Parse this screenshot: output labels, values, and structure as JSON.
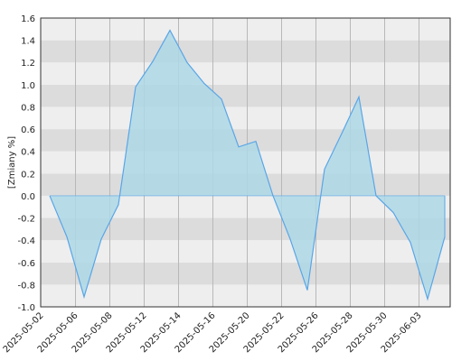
{
  "chart_data": {
    "type": "area",
    "y_label": "[Zmiany %]",
    "categories": [
      "2025-05-02",
      null,
      "2025-05-06",
      null,
      "2025-05-08",
      null,
      "2025-05-12",
      null,
      "2025-05-14",
      null,
      "2025-05-16",
      null,
      "2025-05-20",
      null,
      "2025-05-22",
      null,
      "2025-05-26",
      null,
      "2025-05-28",
      null,
      "2025-05-30",
      null,
      "2025-06-03",
      null
    ],
    "values": [
      0,
      -0.37,
      -0.91,
      -0.39,
      -0.08,
      0.98,
      1.21,
      1.49,
      1.2,
      1.01,
      0.87,
      0.44,
      0.49,
      0,
      -0.39,
      -0.85,
      0.24,
      0.56,
      0.89,
      0,
      -0.15,
      -0.42,
      -0.93,
      -0.37
    ],
    "color": "#5aa5e6",
    "fill": "#add8e6",
    "ylim": [
      -1.0,
      1.6
    ],
    "yticks": [
      {
        "value": -1.0,
        "label": "-1.0"
      },
      -0.8,
      -0.6,
      -0.4,
      -0.2,
      {
        "value": 0,
        "label": "0.0"
      },
      0.2,
      0.4,
      0.6,
      0.8,
      {
        "value": 1.0,
        "label": "1.0"
      },
      1.2,
      1.4,
      1.6
    ],
    "grid": true
  }
}
